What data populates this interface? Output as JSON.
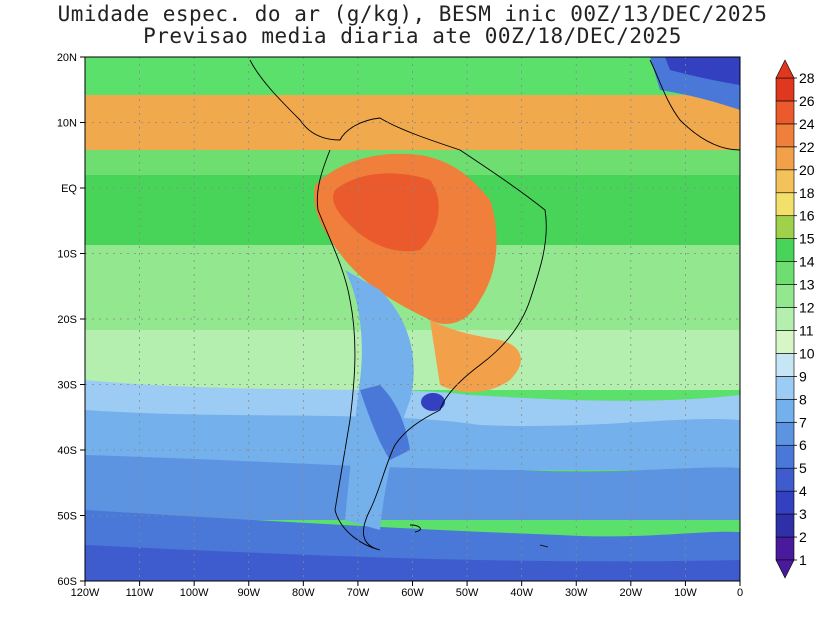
{
  "title_line1": "Umidade espec. do ar (g/kg), BESM inic 00Z/13/DEC/2025",
  "title_line2": "Previsao media diaria ate 00Z/18/DEC/2025",
  "lat_labels": [
    "20N",
    "10N",
    "EQ",
    "10S",
    "20S",
    "30S",
    "40S",
    "50S",
    "60S"
  ],
  "lon_labels": [
    "120W",
    "110W",
    "100W",
    "90W",
    "80W",
    "70W",
    "60W",
    "50W",
    "40W",
    "30W",
    "20W",
    "10W",
    "0"
  ],
  "colorbar": {
    "labels": [
      "1",
      "2",
      "3",
      "4",
      "5",
      "6",
      "7",
      "8",
      "9",
      "10",
      "11",
      "12",
      "13",
      "14",
      "15",
      "16",
      "18",
      "20",
      "22",
      "24",
      "26",
      "28"
    ],
    "colors": [
      "#4a1a9c",
      "#2f2fa8",
      "#3340c0",
      "#3f5ccf",
      "#4a78d8",
      "#5c94e2",
      "#73b0ec",
      "#9ccbf4",
      "#c6e6f6",
      "#d6f6c6",
      "#b5efb0",
      "#93e88f",
      "#6ede70",
      "#48d458",
      "#9fd14a",
      "#f3e06a",
      "#f3c25a",
      "#f2a14a",
      "#ef7f3a",
      "#ea5a2c",
      "#e0371f"
    ],
    "low_arrow_color": "#4a1a9c",
    "high_arrow_color": "#e0371f"
  },
  "ocean_color": "#5be06c"
}
